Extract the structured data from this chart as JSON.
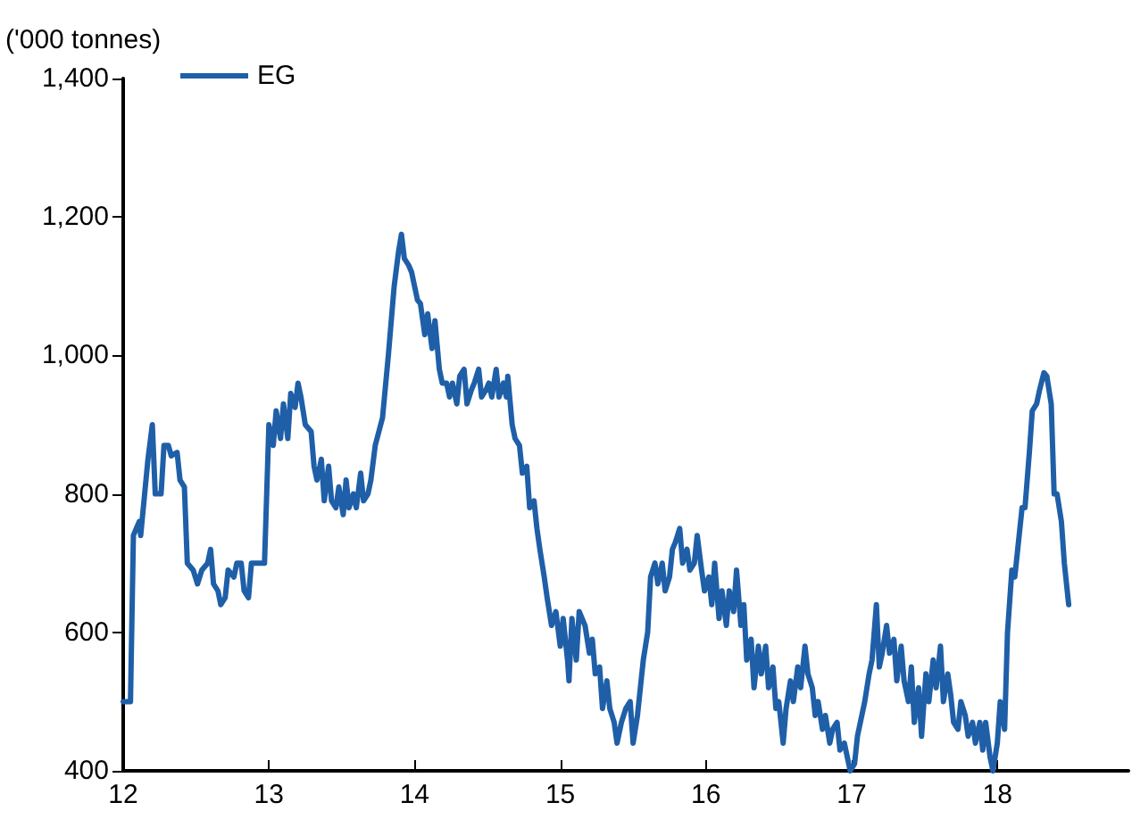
{
  "chart_data": {
    "type": "line",
    "ylabel": "('000 tonnes)",
    "xlim": [
      12,
      18.9
    ],
    "xticks": [
      12,
      13,
      14,
      15,
      16,
      17,
      18
    ],
    "ylim": [
      400,
      1400
    ],
    "yticks": [
      400,
      600,
      800,
      {
        "value": 1000,
        "label": "1,000"
      },
      {
        "value": 1200,
        "label": "1,200"
      },
      {
        "value": 1400,
        "label": "1,400"
      }
    ],
    "grid": false,
    "legend": "top left",
    "marker": "none",
    "line_style": "solid",
    "series": [
      {
        "name": "EG",
        "color": "#1f5fa8",
        "x": [
          12.0,
          12.05,
          12.07,
          12.11,
          12.12,
          12.17,
          12.2,
          12.22,
          12.26,
          12.28,
          12.31,
          12.33,
          12.37,
          12.39,
          12.42,
          12.44,
          12.48,
          12.51,
          12.54,
          12.58,
          12.6,
          12.62,
          12.65,
          12.67,
          12.7,
          12.72,
          12.76,
          12.78,
          12.81,
          12.83,
          12.86,
          12.88,
          12.97,
          13.0,
          13.03,
          13.05,
          13.08,
          13.1,
          13.13,
          13.15,
          13.18,
          13.2,
          13.22,
          13.25,
          13.29,
          13.31,
          13.33,
          13.36,
          13.38,
          13.41,
          13.43,
          13.46,
          13.48,
          13.51,
          13.53,
          13.55,
          13.58,
          13.6,
          13.63,
          13.65,
          13.68,
          13.7,
          13.73,
          13.78,
          13.82,
          13.86,
          13.89,
          13.91,
          13.93,
          13.96,
          13.98,
          14.02,
          14.04,
          14.07,
          14.09,
          14.12,
          14.14,
          14.17,
          14.19,
          14.22,
          14.24,
          14.26,
          14.29,
          14.31,
          14.34,
          14.36,
          14.39,
          14.41,
          14.44,
          14.46,
          14.49,
          14.51,
          14.53,
          14.56,
          14.58,
          14.61,
          14.63,
          14.64,
          14.67,
          14.69,
          14.72,
          14.74,
          14.77,
          14.79,
          14.82,
          14.84,
          14.86,
          14.89,
          14.91,
          14.94,
          14.97,
          15.0,
          15.02,
          15.05,
          15.06,
          15.08,
          15.11,
          15.13,
          15.17,
          15.2,
          15.22,
          15.24,
          15.27,
          15.29,
          15.32,
          15.34,
          15.37,
          15.39,
          15.42,
          15.45,
          15.48,
          15.5,
          15.53,
          15.55,
          15.57,
          15.6,
          15.62,
          15.65,
          15.67,
          15.7,
          15.72,
          15.75,
          15.77,
          15.79,
          15.82,
          15.84,
          15.87,
          15.89,
          15.92,
          15.94,
          15.97,
          15.99,
          16.02,
          16.04,
          16.06,
          16.09,
          16.11,
          16.14,
          16.16,
          16.19,
          16.21,
          16.24,
          16.26,
          16.28,
          16.31,
          16.33,
          16.36,
          16.38,
          16.41,
          16.43,
          16.46,
          16.48,
          16.5,
          16.53,
          16.55,
          16.58,
          16.6,
          16.63,
          16.65,
          16.68,
          16.7,
          16.73,
          16.75,
          16.77,
          16.8,
          16.82,
          16.85,
          16.87,
          16.9,
          16.92,
          16.95,
          16.97,
          16.99,
          17.02,
          17.04,
          17.07,
          17.09,
          17.12,
          17.14,
          17.17,
          17.19,
          17.21,
          17.24,
          17.26,
          17.29,
          17.31,
          17.34,
          17.36,
          17.39,
          17.41,
          17.43,
          17.46,
          17.48,
          17.51,
          17.53,
          17.56,
          17.58,
          17.61,
          17.63,
          17.66,
          17.68,
          17.7,
          17.73,
          17.75,
          17.78,
          17.8,
          17.83,
          17.85,
          17.88,
          17.9,
          17.92,
          17.95,
          17.97,
          18.0,
          18.02,
          18.05,
          18.07,
          18.1,
          18.12,
          18.14,
          18.17,
          18.19,
          18.22,
          18.24,
          18.27,
          18.29,
          18.32,
          18.34,
          18.37,
          18.39,
          18.41,
          18.44,
          18.46,
          18.49
        ],
        "values": [
          500,
          500,
          740,
          760,
          740,
          850,
          900,
          800,
          800,
          870,
          870,
          855,
          860,
          820,
          810,
          700,
          690,
          670,
          690,
          700,
          720,
          670,
          660,
          640,
          650,
          690,
          680,
          700,
          700,
          660,
          650,
          700,
          700,
          900,
          870,
          920,
          880,
          930,
          880,
          945,
          925,
          960,
          940,
          900,
          890,
          840,
          820,
          850,
          790,
          840,
          790,
          780,
          810,
          770,
          820,
          780,
          800,
          780,
          830,
          790,
          800,
          820,
          870,
          910,
          1000,
          1100,
          1150,
          1175,
          1140,
          1130,
          1120,
          1080,
          1075,
          1030,
          1060,
          1010,
          1050,
          980,
          960,
          960,
          940,
          960,
          930,
          970,
          980,
          930,
          950,
          960,
          980,
          940,
          950,
          960,
          940,
          980,
          940,
          960,
          940,
          970,
          900,
          880,
          870,
          830,
          840,
          780,
          790,
          750,
          720,
          680,
          650,
          610,
          630,
          580,
          620,
          560,
          530,
          620,
          560,
          630,
          610,
          570,
          590,
          540,
          550,
          490,
          530,
          490,
          470,
          440,
          470,
          490,
          500,
          440,
          480,
          520,
          560,
          600,
          680,
          700,
          670,
          700,
          660,
          680,
          720,
          730,
          750,
          700,
          720,
          690,
          700,
          740,
          690,
          660,
          680,
          640,
          700,
          620,
          660,
          610,
          660,
          630,
          690,
          610,
          640,
          560,
          590,
          520,
          580,
          540,
          580,
          520,
          550,
          490,
          500,
          440,
          490,
          530,
          500,
          550,
          520,
          580,
          540,
          520,
          480,
          500,
          460,
          480,
          440,
          460,
          470,
          430,
          440,
          420,
          400,
          410,
          450,
          480,
          500,
          540,
          560,
          640,
          550,
          570,
          610,
          570,
          590,
          530,
          580,
          530,
          500,
          550,
          470,
          520,
          450,
          540,
          500,
          560,
          520,
          580,
          500,
          540,
          510,
          470,
          460,
          500,
          480,
          450,
          470,
          440,
          470,
          430,
          470,
          420,
          400,
          440,
          500,
          460,
          600,
          690,
          680,
          720,
          780,
          780,
          860,
          920,
          930,
          950,
          975,
          970,
          930,
          800,
          800,
          760,
          700,
          640
        ]
      }
    ]
  }
}
